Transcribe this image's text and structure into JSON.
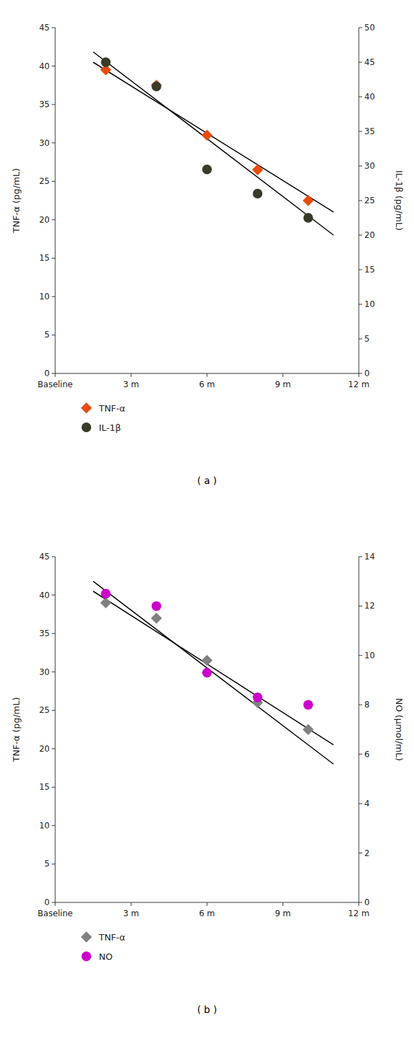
{
  "chart_data": [
    {
      "type": "scatter",
      "title": "( a )",
      "ylabel": "TNF-α (pg/mL)",
      "y2label": "IL-1β (pg/mL)",
      "xlim": [
        0,
        12
      ],
      "xticks": [
        {
          "value": 0,
          "label": "Baseline"
        },
        {
          "value": 3,
          "label": "3 m"
        },
        {
          "value": 6,
          "label": "6 m"
        },
        {
          "value": 9,
          "label": "9 m"
        },
        {
          "value": 12,
          "label": "12 m"
        }
      ],
      "ylim": [
        0,
        45
      ],
      "yticks": [
        0,
        5,
        10,
        15,
        20,
        25,
        30,
        35,
        40,
        45
      ],
      "y2lim": [
        0,
        50
      ],
      "y2ticks": [
        0,
        5,
        10,
        15,
        20,
        25,
        30,
        35,
        40,
        45,
        50
      ],
      "grid": false,
      "legend": "bottom",
      "series": [
        {
          "name": "TNF-α",
          "type": "scatter",
          "marker": "diamond",
          "color": "#e84c0e",
          "x": [
            2,
            4,
            6,
            8,
            10
          ],
          "values": [
            39.5,
            37.5,
            31.0,
            26.5,
            22.5
          ]
        },
        {
          "name": "IL-1β",
          "type": "scatter",
          "marker": "circle",
          "color": "#3a3a2a",
          "axis": "y2",
          "x": [
            2,
            4,
            6,
            8,
            10
          ],
          "values": [
            45.0,
            41.5,
            29.5,
            26.0,
            22.5
          ]
        },
        {
          "type": "line",
          "color": "black",
          "x": [
            1.5,
            11.0
          ],
          "values": [
            40.5,
            21.0
          ]
        },
        {
          "type": "line",
          "color": "black",
          "axis": "y2",
          "x": [
            1.5,
            11.0
          ],
          "values": [
            46.5,
            20.0
          ]
        }
      ]
    },
    {
      "type": "scatter",
      "title": "( b )",
      "ylabel": "TNF-α (pg/mL)",
      "y2label": "NO (μmol/mL)",
      "xlim": [
        0,
        12
      ],
      "xticks": [
        {
          "value": 0,
          "label": "Baseline"
        },
        {
          "value": 3,
          "label": "3 m"
        },
        {
          "value": 6,
          "label": "6 m"
        },
        {
          "value": 9,
          "label": "9 m"
        },
        {
          "value": 12,
          "label": "12 m"
        }
      ],
      "ylim": [
        0,
        45
      ],
      "yticks": [
        0,
        5,
        10,
        15,
        20,
        25,
        30,
        35,
        40,
        45
      ],
      "y2lim": [
        0,
        14
      ],
      "y2ticks": [
        0,
        2,
        4,
        6,
        8,
        10,
        12,
        14
      ],
      "grid": false,
      "legend": "bottom",
      "series": [
        {
          "name": "TNF-α",
          "type": "scatter",
          "marker": "diamond",
          "color": "#808080",
          "x": [
            2,
            4,
            6,
            8,
            10
          ],
          "values": [
            39.0,
            37.0,
            31.5,
            26.0,
            22.5
          ]
        },
        {
          "name": "NO",
          "type": "scatter",
          "marker": "circle",
          "color": "#cc00cc",
          "axis": "y2",
          "x": [
            2,
            4,
            6,
            8,
            10
          ],
          "values": [
            12.5,
            12.0,
            9.3,
            8.3,
            8.0
          ]
        },
        {
          "type": "line",
          "color": "black",
          "x": [
            1.5,
            11.0
          ],
          "values": [
            40.5,
            20.5
          ]
        },
        {
          "type": "line",
          "color": "black",
          "axis": "y2",
          "x": [
            1.5,
            11.0
          ],
          "values": [
            13.0,
            5.6
          ]
        }
      ]
    }
  ]
}
